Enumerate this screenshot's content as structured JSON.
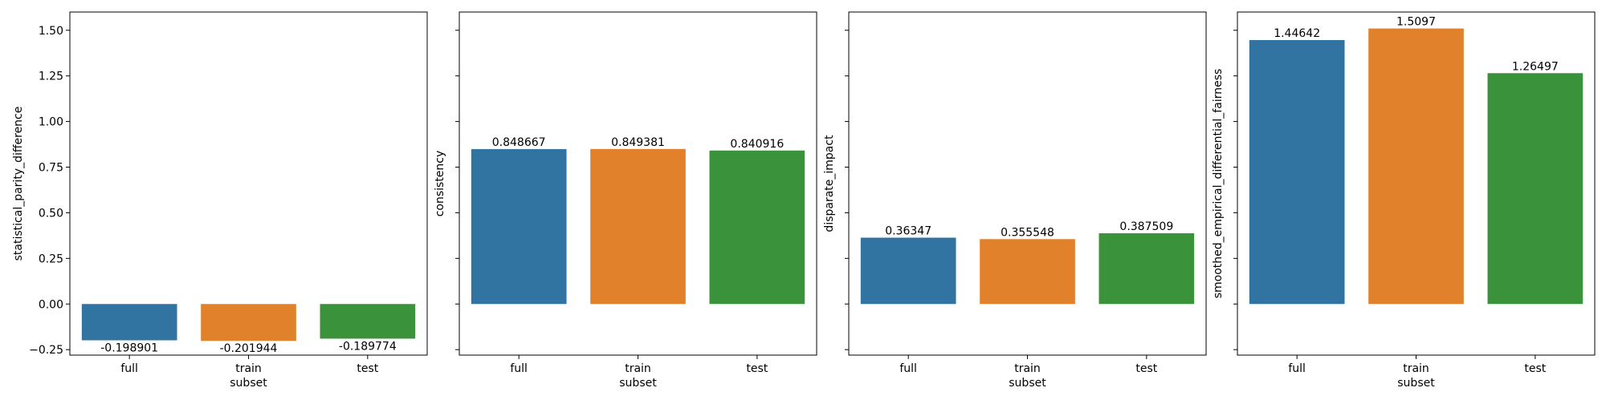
{
  "chart_data": [
    {
      "type": "bar",
      "categories": [
        "full",
        "train",
        "test"
      ],
      "values": [
        -0.198901,
        -0.201944,
        -0.189774
      ],
      "data_labels": [
        "-0.198901",
        "-0.201944",
        "-0.189774"
      ],
      "colors": [
        "#3274a1",
        "#e1812c",
        "#3a923a"
      ],
      "xlabel": "subset",
      "ylabel": "statistical_parity_difference",
      "ylim": [
        -0.28,
        1.6
      ],
      "yticks": [
        -0.25,
        0.0,
        0.25,
        0.5,
        0.75,
        1.0,
        1.25,
        1.5
      ],
      "ytick_labels": [
        "−0.25",
        "0.00",
        "0.25",
        "0.50",
        "0.75",
        "1.00",
        "1.25",
        "1.50"
      ],
      "show_ytick_labels": true,
      "grid": false
    },
    {
      "type": "bar",
      "categories": [
        "full",
        "train",
        "test"
      ],
      "values": [
        0.848667,
        0.849381,
        0.840916
      ],
      "data_labels": [
        "0.848667",
        "0.849381",
        "0.840916"
      ],
      "colors": [
        "#3274a1",
        "#e1812c",
        "#3a923a"
      ],
      "xlabel": "subset",
      "ylabel": "consistency",
      "ylim": [
        -0.28,
        1.6
      ],
      "yticks": [
        -0.25,
        0.0,
        0.25,
        0.5,
        0.75,
        1.0,
        1.25,
        1.5
      ],
      "ytick_labels": [],
      "show_ytick_labels": false,
      "grid": false
    },
    {
      "type": "bar",
      "categories": [
        "full",
        "train",
        "test"
      ],
      "values": [
        0.36347,
        0.355548,
        0.387509
      ],
      "data_labels": [
        "0.36347",
        "0.355548",
        "0.387509"
      ],
      "colors": [
        "#3274a1",
        "#e1812c",
        "#3a923a"
      ],
      "xlabel": "subset",
      "ylabel": "disparate_impact",
      "ylim": [
        -0.28,
        1.6
      ],
      "yticks": [
        -0.25,
        0.0,
        0.25,
        0.5,
        0.75,
        1.0,
        1.25,
        1.5
      ],
      "ytick_labels": [],
      "show_ytick_labels": false,
      "grid": false
    },
    {
      "type": "bar",
      "categories": [
        "full",
        "train",
        "test"
      ],
      "values": [
        1.44642,
        1.5097,
        1.26497
      ],
      "data_labels": [
        "1.44642",
        "1.5097",
        "1.26497"
      ],
      "colors": [
        "#3274a1",
        "#e1812c",
        "#3a923a"
      ],
      "xlabel": "subset",
      "ylabel": "smoothed_empirical_differential_fairness",
      "ylim": [
        -0.28,
        1.6
      ],
      "yticks": [
        -0.25,
        0.0,
        0.25,
        0.5,
        0.75,
        1.0,
        1.25,
        1.5
      ],
      "ytick_labels": [],
      "show_ytick_labels": false,
      "grid": false
    }
  ]
}
